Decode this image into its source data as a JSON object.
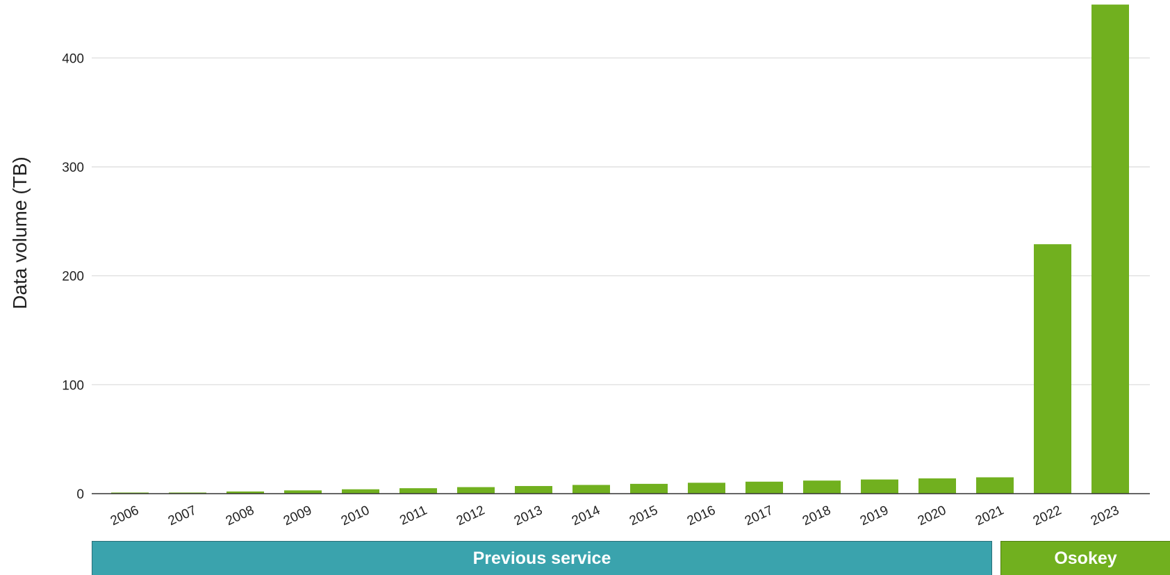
{
  "chart_data": {
    "type": "bar",
    "categories": [
      "2006",
      "2007",
      "2008",
      "2009",
      "2010",
      "2011",
      "2012",
      "2013",
      "2014",
      "2015",
      "2016",
      "2017",
      "2018",
      "2019",
      "2020",
      "2021",
      "2022",
      "2023"
    ],
    "values": [
      1,
      1,
      2,
      3,
      4,
      5,
      6,
      7,
      8,
      9,
      10,
      11,
      12,
      13,
      14,
      15,
      229,
      449
    ],
    "ylabel": "Data volume (TB)",
    "xlabel": "",
    "ylim": [
      0,
      450
    ],
    "yticks": [
      0,
      100,
      200,
      300,
      400
    ],
    "grid": true,
    "colors": {
      "bar": "#71b01f",
      "grid": "#d9d9d9",
      "axis": "#333333",
      "text": "#222222"
    }
  },
  "bands": [
    {
      "label": "Previous service",
      "from": "2006",
      "to": "2021",
      "color": "#3aa3ad"
    },
    {
      "label": "Osokey",
      "from": "2022",
      "to": "2023",
      "color": "#71b01f"
    }
  ]
}
